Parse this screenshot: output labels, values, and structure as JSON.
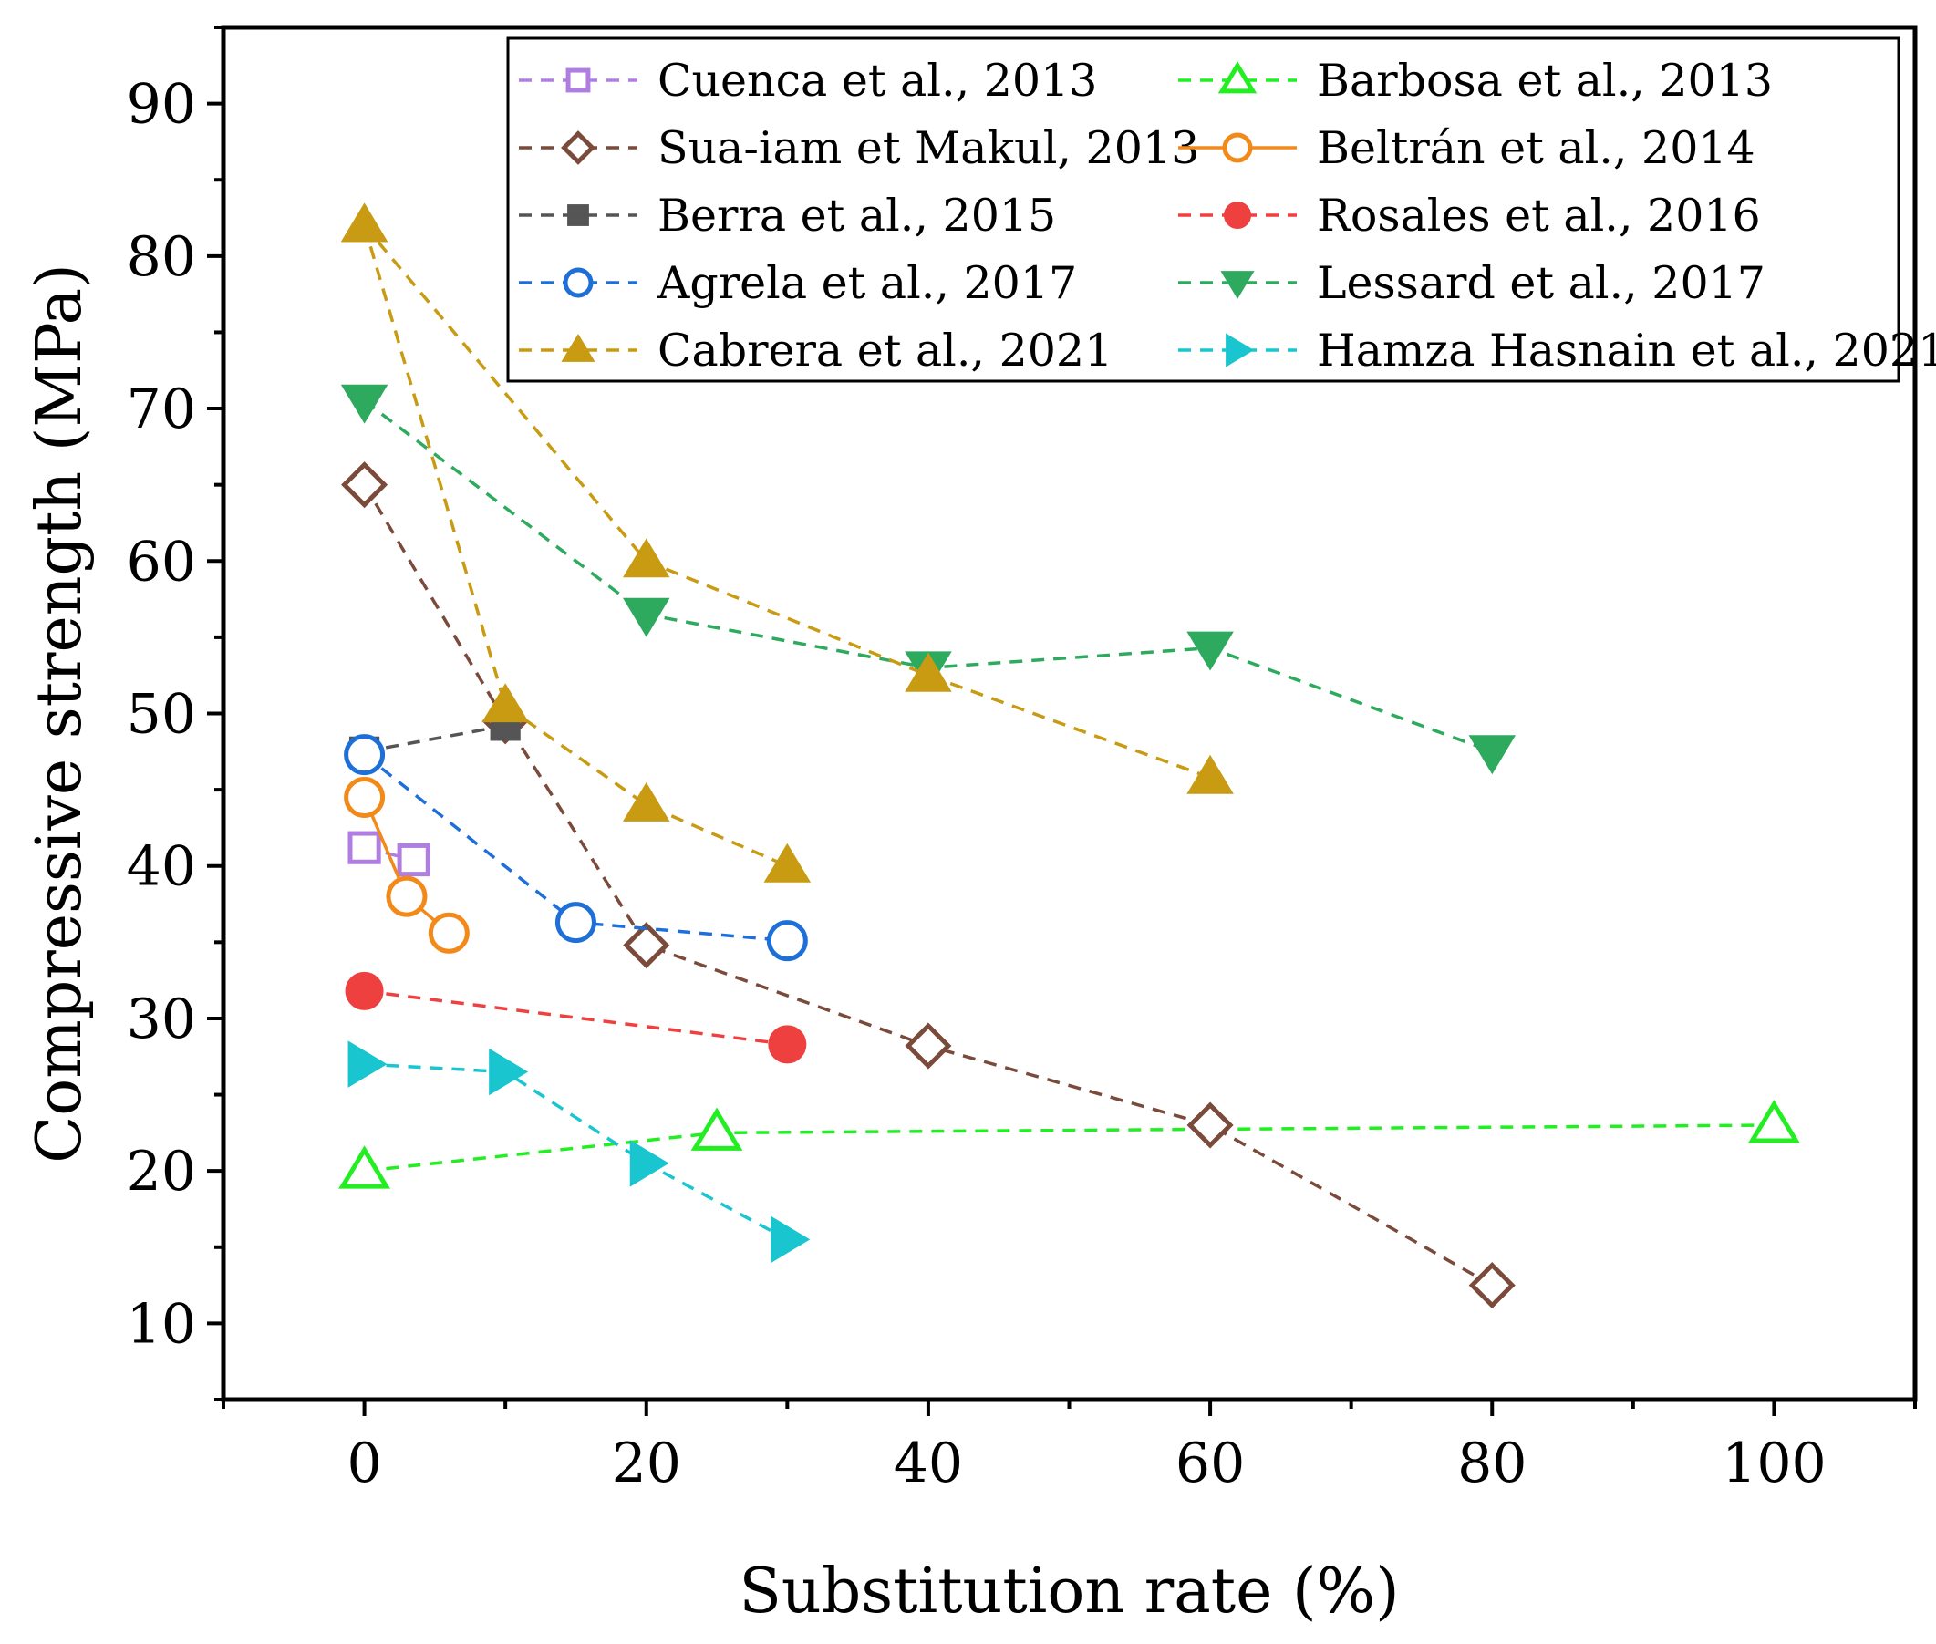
{
  "chart_data": {
    "type": "line",
    "title": "",
    "xlabel": "Substitution rate (%)",
    "ylabel": "Compressive strength (MPa)",
    "xlim": [
      -10,
      110
    ],
    "ylim": [
      5,
      95
    ],
    "xticks": [
      0,
      20,
      40,
      60,
      80,
      100
    ],
    "yticks": [
      10,
      20,
      30,
      40,
      50,
      60,
      70,
      80,
      90
    ],
    "x_tick_labels": [
      "0",
      "20",
      "40",
      "60",
      "80",
      "100"
    ],
    "y_tick_labels": [
      "10",
      "20",
      "30",
      "40",
      "50",
      "60",
      "70",
      "80",
      "90"
    ],
    "grid": false,
    "legend_position": "top-right",
    "series": [
      {
        "name": "Cuenca et al., 2013",
        "color": "#b07de0",
        "marker": "square-open",
        "line": "dashed",
        "x": [
          0,
          3.5
        ],
        "y": [
          41.2,
          40.4
        ]
      },
      {
        "name": "Barbosa et al., 2013",
        "color": "#22ee22",
        "marker": "triangle-up-open",
        "line": "dashed",
        "x": [
          0,
          25,
          100
        ],
        "y": [
          20,
          22.5,
          23
        ]
      },
      {
        "name": "Sua-iam et Makul, 2013",
        "color": "#7a4a3a",
        "marker": "diamond-open",
        "line": "dashed",
        "x": [
          0,
          10,
          20,
          40,
          60,
          80
        ],
        "y": [
          65,
          49.5,
          34.8,
          28.2,
          23,
          12.5
        ]
      },
      {
        "name": "Beltrán et al., 2014",
        "color": "#f28a1a",
        "marker": "circle-open",
        "line": "solid",
        "x": [
          0,
          3,
          6
        ],
        "y": [
          44.5,
          38,
          35.6
        ]
      },
      {
        "name": "Berra et al., 2015",
        "color": "#555555",
        "marker": "square-filled",
        "line": "dashed",
        "x": [
          0,
          10
        ],
        "y": [
          47.5,
          49.2
        ]
      },
      {
        "name": "Rosales et al., 2016",
        "color": "#ef4040",
        "marker": "circle-filled",
        "line": "dashed",
        "x": [
          0,
          30
        ],
        "y": [
          31.8,
          28.3
        ]
      },
      {
        "name": "Agrela et al., 2017",
        "color": "#1e6fd8",
        "marker": "circle-open",
        "line": "dashed",
        "x": [
          0,
          15,
          30
        ],
        "y": [
          47.3,
          36.3,
          35.1
        ]
      },
      {
        "name": "Lessard et al., 2017",
        "color": "#2eaa5e",
        "marker": "triangle-down-filled",
        "line": "dashed",
        "x": [
          0,
          20,
          40,
          60,
          80
        ],
        "y": [
          70.5,
          56.5,
          53,
          54.3,
          47.5
        ]
      },
      {
        "name": "Cabrera et al., 2021",
        "color": "#c89b12",
        "marker": "triangle-up-filled",
        "line": "dashed",
        "x": [
          0,
          20,
          40,
          60
        ],
        "y": [
          82,
          60,
          52.5,
          45.8
        ]
      },
      {
        "name": "Cabrera et al., 2021",
        "color": "#c89b12",
        "marker": "triangle-up-filled",
        "line": "dashed",
        "x": [
          0,
          10,
          20,
          30
        ],
        "y": [
          82,
          50.5,
          44,
          40
        ]
      },
      {
        "name": "Hamza Hasnain et al., 2021",
        "color": "#19c5cf",
        "marker": "triangle-right-filled",
        "line": "dashed",
        "x": [
          0,
          10,
          20,
          30
        ],
        "y": [
          27,
          26.5,
          20.5,
          15.5
        ]
      }
    ],
    "legend": [
      {
        "label": "Cuenca et al., 2013",
        "color": "#b07de0",
        "marker": "square-open",
        "line": "dashed"
      },
      {
        "label": "Barbosa et al., 2013",
        "color": "#22ee22",
        "marker": "triangle-up-open",
        "line": "dashed"
      },
      {
        "label": "Sua-iam et Makul, 2013",
        "color": "#7a4a3a",
        "marker": "diamond-open",
        "line": "dashed"
      },
      {
        "label": "Beltrán et al., 2014",
        "color": "#f28a1a",
        "marker": "circle-open",
        "line": "solid"
      },
      {
        "label": "Berra et al., 2015",
        "color": "#555555",
        "marker": "square-filled",
        "line": "dashed"
      },
      {
        "label": "Rosales et al., 2016",
        "color": "#ef4040",
        "marker": "circle-filled",
        "line": "dashed"
      },
      {
        "label": "Agrela et al., 2017",
        "color": "#1e6fd8",
        "marker": "circle-open",
        "line": "dashed"
      },
      {
        "label": "Lessard et al., 2017",
        "color": "#2eaa5e",
        "marker": "triangle-down-filled",
        "line": "dashed"
      },
      {
        "label": "Cabrera et al., 2021",
        "color": "#c89b12",
        "marker": "triangle-up-filled",
        "line": "dashed"
      },
      {
        "label": "Hamza Hasnain et al., 2021",
        "color": "#19c5cf",
        "marker": "triangle-right-filled",
        "line": "dashed"
      }
    ]
  }
}
